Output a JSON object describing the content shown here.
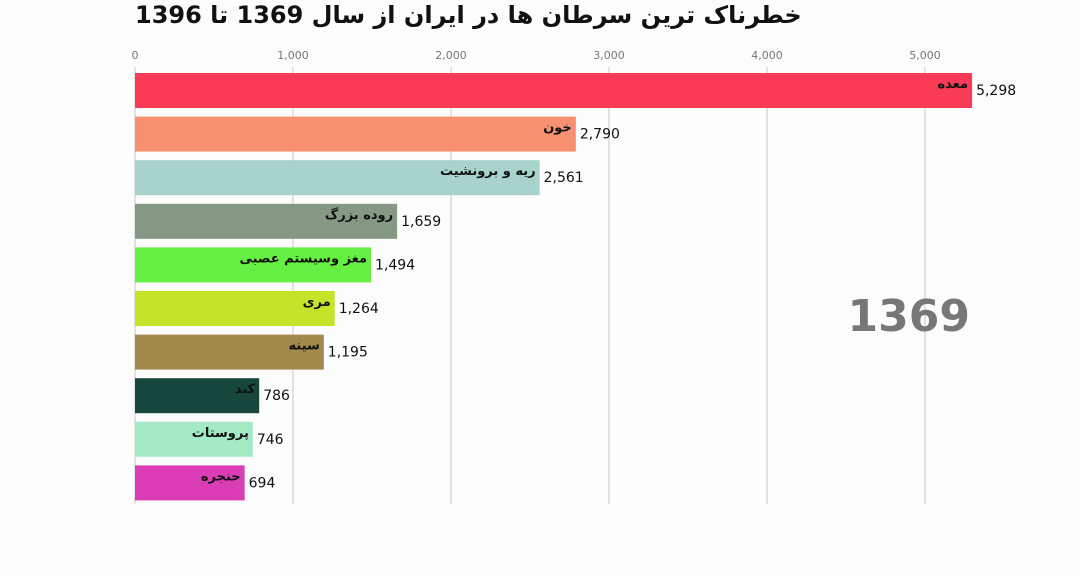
{
  "chart_data": {
    "type": "bar",
    "orientation": "horizontal",
    "title": "خطرناک ترین سرطان ها در ایران از سال 1369 تا 1396",
    "year_label": "1369",
    "categories": [
      "معده",
      "خون",
      "ریه و برونشیت",
      "روده بزرگ",
      "مغز وسیستم عصبی",
      "مری",
      "سینه",
      "کبد",
      "پروستات",
      "حنجره"
    ],
    "values": [
      5298,
      2790,
      2561,
      1659,
      1494,
      1264,
      1195,
      786,
      746,
      694
    ],
    "value_labels": [
      "5,298",
      "2,790",
      "2,561",
      "1,659",
      "1,494",
      "1,264",
      "1,195",
      "786",
      "746",
      "694"
    ],
    "colors": [
      "#f93b57",
      "#f79171",
      "#a7d3cc",
      "#849884",
      "#65f143",
      "#c5e329",
      "#a18a4b",
      "#17463d",
      "#a4eac7",
      "#db3db6"
    ],
    "xlim": [
      0,
      5500
    ],
    "xticks": [
      0,
      1000,
      2000,
      3000,
      4000,
      5000
    ],
    "xtick_labels": [
      "0",
      "1,000",
      "2,000",
      "3,000",
      "4,000",
      "5,000"
    ],
    "xaxis_position": "top",
    "grid": true
  }
}
